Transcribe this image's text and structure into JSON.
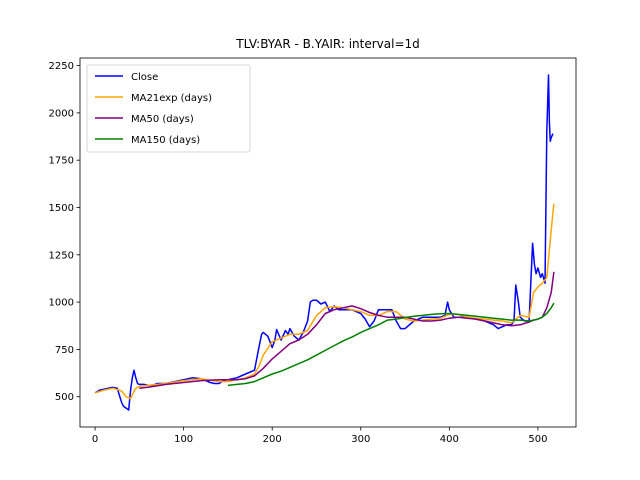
{
  "chart_data": {
    "type": "line",
    "title": "TLV:BYAR - B.YAIR: interval=1d",
    "xlabel": "",
    "ylabel": "",
    "xlim": [
      -17,
      543
    ],
    "ylim": [
      340,
      2290
    ],
    "xticks": [
      0,
      100,
      200,
      300,
      400,
      500
    ],
    "yticks": [
      500,
      750,
      1000,
      1250,
      1500,
      1750,
      2000,
      2250
    ],
    "grid": false,
    "legend_position": "upper left",
    "series": [
      {
        "name": "Close",
        "color": "#0000ff",
        "x": [
          0,
          5,
          10,
          15,
          20,
          25,
          30,
          32,
          35,
          38,
          40,
          42,
          44,
          46,
          48,
          50,
          55,
          60,
          65,
          70,
          80,
          90,
          100,
          110,
          120,
          130,
          135,
          140,
          145,
          150,
          160,
          170,
          180,
          185,
          188,
          190,
          195,
          200,
          203,
          205,
          210,
          215,
          218,
          220,
          225,
          230,
          235,
          240,
          243,
          246,
          250,
          255,
          260,
          265,
          270,
          275,
          280,
          290,
          300,
          305,
          310,
          315,
          320,
          325,
          330,
          335,
          340,
          345,
          350,
          360,
          370,
          380,
          390,
          395,
          398,
          400,
          405,
          410,
          420,
          430,
          440,
          450,
          455,
          460,
          465,
          470,
          473,
          475,
          478,
          480,
          485,
          490,
          492,
          494,
          496,
          498,
          500,
          503,
          505,
          508,
          510,
          512,
          513,
          514,
          515,
          517
        ],
        "values": [
          520,
          535,
          540,
          545,
          550,
          545,
          470,
          450,
          440,
          430,
          530,
          600,
          640,
          600,
          570,
          565,
          565,
          560,
          560,
          570,
          570,
          580,
          590,
          600,
          595,
          575,
          570,
          570,
          585,
          590,
          600,
          620,
          640,
          760,
          830,
          840,
          820,
          760,
          800,
          855,
          800,
          850,
          830,
          860,
          820,
          800,
          840,
          900,
          1000,
          1010,
          1010,
          990,
          1000,
          950,
          980,
          960,
          960,
          960,
          940,
          910,
          870,
          900,
          960,
          960,
          960,
          960,
          900,
          860,
          860,
          900,
          920,
          920,
          920,
          930,
          1000,
          960,
          920,
          920,
          920,
          910,
          900,
          880,
          860,
          870,
          880,
          880,
          900,
          1090,
          1000,
          920,
          900,
          900,
          1100,
          1310,
          1200,
          1150,
          1180,
          1130,
          1150,
          1100,
          1900,
          2200,
          1950,
          1850,
          1870,
          1890
        ]
      },
      {
        "name": "MA21exp (days)",
        "color": "#ffa500",
        "x": [
          0,
          10,
          20,
          30,
          35,
          40,
          45,
          50,
          60,
          80,
          100,
          120,
          140,
          150,
          160,
          170,
          180,
          185,
          190,
          200,
          210,
          220,
          230,
          240,
          250,
          260,
          270,
          280,
          290,
          300,
          310,
          320,
          330,
          340,
          350,
          360,
          370,
          380,
          390,
          400,
          410,
          420,
          430,
          440,
          450,
          460,
          470,
          480,
          490,
          495,
          500,
          505,
          510,
          515,
          518
        ],
        "values": [
          520,
          535,
          545,
          530,
          500,
          490,
          540,
          555,
          560,
          570,
          585,
          595,
          580,
          580,
          590,
          600,
          620,
          660,
          720,
          790,
          810,
          830,
          830,
          850,
          930,
          970,
          975,
          970,
          960,
          950,
          930,
          930,
          950,
          950,
          910,
          900,
          905,
          910,
          915,
          935,
          935,
          920,
          915,
          910,
          905,
          900,
          890,
          930,
          920,
          1050,
          1080,
          1100,
          1130,
          1380,
          1520
        ]
      },
      {
        "name": "MA50 (days)",
        "color": "#800080",
        "x": [
          50,
          60,
          80,
          100,
          120,
          140,
          160,
          170,
          180,
          190,
          200,
          210,
          220,
          230,
          240,
          250,
          260,
          270,
          280,
          290,
          300,
          310,
          320,
          330,
          340,
          350,
          360,
          370,
          380,
          390,
          400,
          410,
          420,
          430,
          440,
          450,
          460,
          470,
          480,
          490,
          495,
          500,
          505,
          510,
          515,
          518
        ],
        "values": [
          545,
          550,
          565,
          575,
          585,
          590,
          590,
          595,
          610,
          650,
          700,
          740,
          780,
          800,
          830,
          880,
          940,
          960,
          970,
          980,
          965,
          945,
          930,
          920,
          920,
          920,
          910,
          900,
          900,
          905,
          915,
          920,
          915,
          910,
          900,
          890,
          880,
          875,
          880,
          895,
          905,
          910,
          920,
          970,
          1050,
          1160
        ]
      },
      {
        "name": "MA150 (days)",
        "color": "#008000",
        "x": [
          150,
          160,
          170,
          180,
          190,
          200,
          210,
          220,
          230,
          240,
          250,
          260,
          270,
          280,
          290,
          300,
          310,
          320,
          330,
          340,
          350,
          360,
          370,
          380,
          390,
          400,
          410,
          420,
          430,
          440,
          450,
          460,
          470,
          480,
          490,
          495,
          500,
          505,
          510,
          515,
          518
        ],
        "values": [
          560,
          565,
          570,
          580,
          600,
          620,
          635,
          655,
          675,
          695,
          720,
          745,
          770,
          795,
          815,
          840,
          860,
          880,
          905,
          910,
          918,
          925,
          930,
          935,
          938,
          940,
          935,
          930,
          925,
          920,
          915,
          910,
          905,
          905,
          900,
          905,
          910,
          920,
          940,
          970,
          995
        ]
      }
    ]
  }
}
